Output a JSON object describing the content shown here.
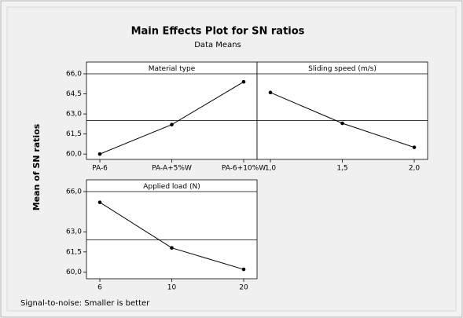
{
  "title": "Main Effects Plot for SN  ratios",
  "subtitle": "Data Means",
  "ylabel": "Mean of SN ratios",
  "footnote": "Signal-to-noise: Smaller is better",
  "chart_data": [
    {
      "type": "line",
      "title": "Material type",
      "categories": [
        "PA-6",
        "PA-A+5%W",
        "PA-6+10%W"
      ],
      "values": [
        60.0,
        62.2,
        65.4
      ],
      "color": "#000000",
      "reference_line": 62.5,
      "ylim": [
        59.6,
        66.0
      ],
      "yticks": [
        {
          "value": 60,
          "label": "60,0"
        },
        {
          "value": 61.5,
          "label": "61,5"
        },
        {
          "value": 63,
          "label": "63,0"
        },
        {
          "value": 64.5,
          "label": "64,5"
        },
        {
          "value": 66,
          "label": "66,0"
        }
      ]
    },
    {
      "type": "line",
      "title": "Sliding speed (m/s)",
      "categories": [
        "1,0",
        "1,5",
        "2,0"
      ],
      "values": [
        64.6,
        62.3,
        60.5
      ],
      "color": "#000000",
      "reference_line": 62.5,
      "ylim": [
        59.6,
        66.0
      ]
    },
    {
      "type": "line",
      "title": "Applied load (N)",
      "categories": [
        "6",
        "10",
        "20"
      ],
      "values": [
        65.2,
        61.8,
        60.2
      ],
      "color": "#000000",
      "reference_line": 62.4,
      "ylim": [
        59.5,
        66.0
      ],
      "yticks": [
        {
          "value": 60,
          "label": "60,0"
        },
        {
          "value": 61.5,
          "label": "61,5"
        },
        {
          "value": 63,
          "label": "63,0"
        },
        {
          "value": 66,
          "label": "66,0"
        }
      ]
    }
  ]
}
